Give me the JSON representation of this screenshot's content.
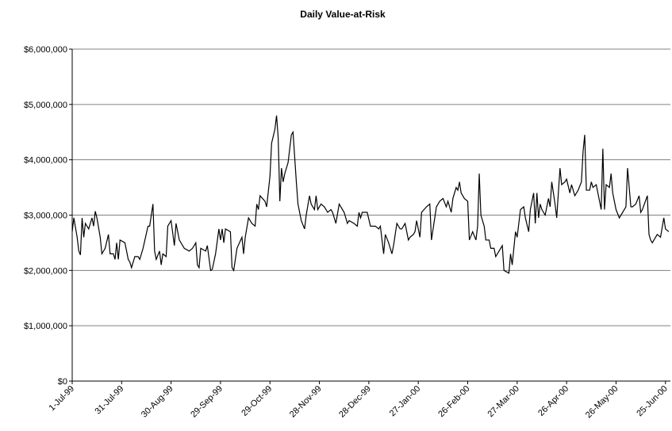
{
  "chart_data": {
    "type": "line",
    "title": "Daily Value-at-Risk",
    "x": [
      "1999-07-01",
      "1999-07-02",
      "1999-07-04",
      "1999-07-05",
      "1999-07-06",
      "1999-07-07",
      "1999-07-08",
      "1999-07-09",
      "1999-07-11",
      "1999-07-13",
      "1999-07-14",
      "1999-07-15",
      "1999-07-16",
      "1999-07-18",
      "1999-07-19",
      "1999-07-21",
      "1999-07-23",
      "1999-07-24",
      "1999-07-26",
      "1999-07-27",
      "1999-07-28",
      "1999-07-29",
      "1999-07-30",
      "1999-08-02",
      "1999-08-04",
      "1999-08-05",
      "1999-08-06",
      "1999-08-08",
      "1999-08-10",
      "1999-08-11",
      "1999-08-13",
      "1999-08-16",
      "1999-08-17",
      "1999-08-19",
      "1999-08-20",
      "1999-08-21",
      "1999-08-23",
      "1999-08-24",
      "1999-08-25",
      "1999-08-27",
      "1999-08-28",
      "1999-08-30",
      "1999-09-01",
      "1999-09-02",
      "1999-09-04",
      "1999-09-07",
      "1999-09-10",
      "1999-09-12",
      "1999-09-14",
      "1999-09-15",
      "1999-09-16",
      "1999-09-17",
      "1999-09-20",
      "1999-09-21",
      "1999-09-23",
      "1999-09-24",
      "1999-09-26",
      "1999-09-28",
      "1999-09-29",
      "1999-09-30",
      "1999-10-01",
      "1999-10-02",
      "1999-10-05",
      "1999-10-06",
      "1999-10-07",
      "1999-10-09",
      "1999-10-12",
      "1999-10-13",
      "1999-10-14",
      "1999-10-16",
      "1999-10-18",
      "1999-10-20",
      "1999-10-21",
      "1999-10-22",
      "1999-10-23",
      "1999-10-26",
      "1999-10-27",
      "1999-10-29",
      "1999-10-30",
      "1999-11-01",
      "1999-11-02",
      "1999-11-03",
      "1999-11-04",
      "1999-11-05",
      "1999-11-06",
      "1999-11-07",
      "1999-11-09",
      "1999-11-11",
      "1999-11-12",
      "1999-11-14",
      "1999-11-15",
      "1999-11-17",
      "1999-11-19",
      "1999-11-20",
      "1999-11-22",
      "1999-11-23",
      "1999-11-25",
      "1999-11-26",
      "1999-11-27",
      "1999-11-29",
      "1999-12-01",
      "1999-12-03",
      "1999-12-05",
      "1999-12-06",
      "1999-12-08",
      "1999-12-10",
      "1999-12-13",
      "1999-12-15",
      "1999-12-16",
      "1999-12-19",
      "1999-12-21",
      "1999-12-22",
      "1999-12-23",
      "1999-12-24",
      "1999-12-27",
      "1999-12-29",
      "1999-12-31",
      "2000-01-01",
      "2000-01-03",
      "2000-01-04",
      "2000-01-06",
      "2000-01-07",
      "2000-01-09",
      "2000-01-11",
      "2000-01-12",
      "2000-01-14",
      "2000-01-16",
      "2000-01-17",
      "2000-01-19",
      "2000-01-21",
      "2000-01-22",
      "2000-01-24",
      "2000-01-25",
      "2000-01-26",
      "2000-01-28",
      "2000-01-29",
      "2000-02-01",
      "2000-02-03",
      "2000-02-04",
      "2000-02-06",
      "2000-02-07",
      "2000-02-09",
      "2000-02-11",
      "2000-02-13",
      "2000-02-14",
      "2000-02-16",
      "2000-02-17",
      "2000-02-19",
      "2000-02-20",
      "2000-02-21",
      "2000-02-22",
      "2000-02-24",
      "2000-02-26",
      "2000-02-27",
      "2000-02-29",
      "2000-03-02",
      "2000-03-03",
      "2000-03-04",
      "2000-03-05",
      "2000-03-07",
      "2000-03-08",
      "2000-03-10",
      "2000-03-11",
      "2000-03-13",
      "2000-03-14",
      "2000-03-16",
      "2000-03-18",
      "2000-03-19",
      "2000-03-22",
      "2000-03-23",
      "2000-03-24",
      "2000-03-26",
      "2000-03-27",
      "2000-03-29",
      "2000-03-31",
      "2000-04-01",
      "2000-04-03",
      "2000-04-04",
      "2000-04-06",
      "2000-04-07",
      "2000-04-08",
      "2000-04-09",
      "2000-04-10",
      "2000-04-11",
      "2000-04-13",
      "2000-04-15",
      "2000-04-16",
      "2000-04-17",
      "2000-04-19",
      "2000-04-20",
      "2000-04-22",
      "2000-04-23",
      "2000-04-25",
      "2000-04-26",
      "2000-04-28",
      "2000-04-29",
      "2000-05-01",
      "2000-05-03",
      "2000-05-05",
      "2000-05-06",
      "2000-05-07",
      "2000-05-08",
      "2000-05-10",
      "2000-05-11",
      "2000-05-12",
      "2000-05-14",
      "2000-05-16",
      "2000-05-17",
      "2000-05-18",
      "2000-05-19",
      "2000-05-20",
      "2000-05-22",
      "2000-05-23",
      "2000-05-24",
      "2000-05-26",
      "2000-05-28",
      "2000-05-30",
      "2000-06-01",
      "2000-06-02",
      "2000-06-04",
      "2000-06-05",
      "2000-06-07",
      "2000-06-09",
      "2000-06-10",
      "2000-06-11",
      "2000-06-14",
      "2000-06-15",
      "2000-06-16",
      "2000-06-17",
      "2000-06-19",
      "2000-06-20",
      "2000-06-22",
      "2000-06-24",
      "2000-06-25",
      "2000-06-27"
    ],
    "series": [
      {
        "color": "#000000",
        "values": [
          2700000,
          2950000,
          2600000,
          2350000,
          2280000,
          2950000,
          2600000,
          2850000,
          2750000,
          2950000,
          2800000,
          3070000,
          2950000,
          2600000,
          2300000,
          2400000,
          2650000,
          2300000,
          2300000,
          2200000,
          2500000,
          2200000,
          2550000,
          2500000,
          2200000,
          2150000,
          2050000,
          2250000,
          2250000,
          2200000,
          2400000,
          2800000,
          2800000,
          3200000,
          2350000,
          2200000,
          2350000,
          2100000,
          2300000,
          2250000,
          2800000,
          2900000,
          2450000,
          2850000,
          2550000,
          2400000,
          2350000,
          2400000,
          2500000,
          2100000,
          2050000,
          2400000,
          2350000,
          2450000,
          2000000,
          2020000,
          2300000,
          2750000,
          2550000,
          2750000,
          2500000,
          2750000,
          2700000,
          2050000,
          2000000,
          2400000,
          2600000,
          2300000,
          2600000,
          2950000,
          2850000,
          2800000,
          3200000,
          3100000,
          3350000,
          3250000,
          3150000,
          3700000,
          4300000,
          4550000,
          4800000,
          4400000,
          3250000,
          3850000,
          3600000,
          3750000,
          3950000,
          4450000,
          4500000,
          3600000,
          3200000,
          2900000,
          2750000,
          3000000,
          3350000,
          3200000,
          3100000,
          3350000,
          3100000,
          3200000,
          3150000,
          3050000,
          3100000,
          3050000,
          2850000,
          3200000,
          3050000,
          2850000,
          2900000,
          2850000,
          2800000,
          3050000,
          2950000,
          3050000,
          3050000,
          2800000,
          2800000,
          2800000,
          2750000,
          2800000,
          2300000,
          2650000,
          2500000,
          2300000,
          2450000,
          2850000,
          2750000,
          2750000,
          2850000,
          2550000,
          2600000,
          2650000,
          2700000,
          2900000,
          2600000,
          3050000,
          3150000,
          3200000,
          2550000,
          2950000,
          3150000,
          3250000,
          3300000,
          3150000,
          3250000,
          3050000,
          3300000,
          3500000,
          3450000,
          3600000,
          3400000,
          3300000,
          3250000,
          2550000,
          2700000,
          2550000,
          2800000,
          3750000,
          3000000,
          2800000,
          2550000,
          2550000,
          2400000,
          2400000,
          2250000,
          2350000,
          2450000,
          2000000,
          1950000,
          2300000,
          2100000,
          2700000,
          2600000,
          3100000,
          3150000,
          2950000,
          2700000,
          3100000,
          3400000,
          2850000,
          3400000,
          2950000,
          3200000,
          3100000,
          3000000,
          3300000,
          3150000,
          3600000,
          3200000,
          2950000,
          3850000,
          3550000,
          3600000,
          3650000,
          3400000,
          3550000,
          3350000,
          3450000,
          3600000,
          4150000,
          4450000,
          3450000,
          3450000,
          3600000,
          3500000,
          3550000,
          3250000,
          3100000,
          4200000,
          3100000,
          3550000,
          3500000,
          3750000,
          3400000,
          3100000,
          2950000,
          3050000,
          3150000,
          3850000,
          3150000,
          3150000,
          3200000,
          3350000,
          3050000,
          3100000,
          3350000,
          2650000,
          2550000,
          2500000,
          2600000,
          2650000,
          2600000,
          2950000,
          2750000,
          2700000
        ]
      }
    ],
    "xlim": [
      "1999-07-01",
      "2000-06-28"
    ],
    "xticks": [
      {
        "value": "1999-07-01",
        "label": "1-Jul-99"
      },
      {
        "value": "1999-07-31",
        "label": "31-Jul-99"
      },
      {
        "value": "1999-08-30",
        "label": "30-Aug-99"
      },
      {
        "value": "1999-09-29",
        "label": "29-Sep-99"
      },
      {
        "value": "1999-10-29",
        "label": "29-Oct-99"
      },
      {
        "value": "1999-11-28",
        "label": "28-Nov-99"
      },
      {
        "value": "1999-12-28",
        "label": "28-Dec-99"
      },
      {
        "value": "2000-01-27",
        "label": "27-Jan-00"
      },
      {
        "value": "2000-02-26",
        "label": "26-Feb-00"
      },
      {
        "value": "2000-03-27",
        "label": "27-Mar-00"
      },
      {
        "value": "2000-04-26",
        "label": "26-Apr-00"
      },
      {
        "value": "2000-05-26",
        "label": "26-May-00"
      },
      {
        "value": "2000-06-25",
        "label": "25-Jun-00"
      }
    ],
    "ylim": [
      0,
      6000000
    ],
    "yticks": [
      {
        "value": 0,
        "label": "$0"
      },
      {
        "value": 1000000,
        "label": "$1,000,000"
      },
      {
        "value": 2000000,
        "label": "$2,000,000"
      },
      {
        "value": 3000000,
        "label": "$3,000,000"
      },
      {
        "value": 4000000,
        "label": "$4,000,000"
      },
      {
        "value": 5000000,
        "label": "$5,000,000"
      },
      {
        "value": 6000000,
        "label": "$6,000,000"
      }
    ],
    "grid": true
  }
}
